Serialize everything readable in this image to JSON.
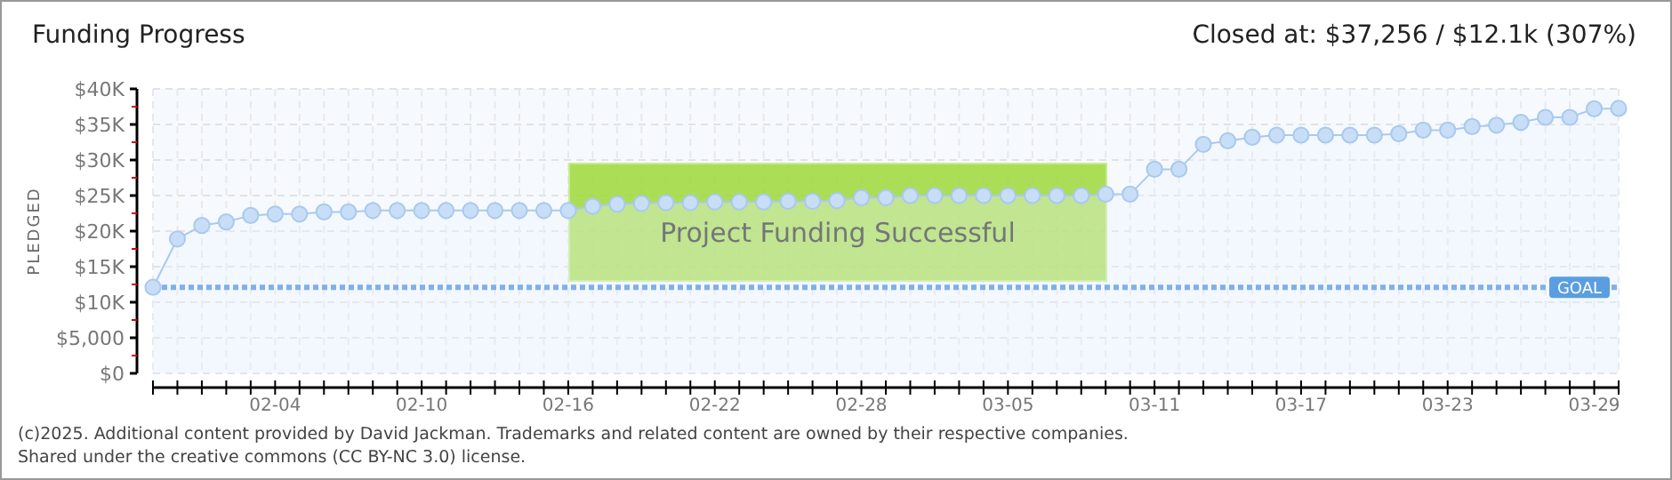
{
  "chart_data": {
    "type": "area",
    "title": "Funding Progress",
    "subtitle": "Closed at: $37,256 / $12.1k (307%)",
    "ylabel": "PLEDGED",
    "categories": [
      null,
      null,
      null,
      null,
      null,
      "02-04",
      null,
      null,
      null,
      null,
      null,
      "02-10",
      null,
      null,
      null,
      null,
      null,
      "02-16",
      null,
      null,
      null,
      null,
      null,
      "02-22",
      null,
      null,
      null,
      null,
      null,
      "02-28",
      null,
      null,
      null,
      null,
      null,
      "03-05",
      null,
      null,
      null,
      null,
      null,
      "03-11",
      null,
      null,
      null,
      null,
      null,
      "03-17",
      null,
      null,
      null,
      null,
      null,
      "03-23",
      null,
      null,
      null,
      null,
      null,
      "03-29",
      null
    ],
    "series": [
      {
        "color": "#a9c9ef",
        "values": [
          12100,
          18900,
          20800,
          21300,
          22200,
          22400,
          22400,
          22700,
          22700,
          22900,
          22900,
          22900,
          22900,
          22900,
          22900,
          22900,
          22900,
          22900,
          23500,
          23800,
          23900,
          24000,
          24000,
          24100,
          24100,
          24100,
          24200,
          24200,
          24300,
          24700,
          24700,
          25000,
          25000,
          25000,
          25000,
          25000,
          25000,
          25000,
          25000,
          25200,
          25200,
          28700,
          28700,
          32200,
          32700,
          33200,
          33500,
          33500,
          33500,
          33500,
          33500,
          33700,
          34200,
          34200,
          34700,
          34900,
          35300,
          36000,
          36000,
          37200,
          37256
        ]
      }
    ],
    "ylim": [
      0,
      40000
    ],
    "yticks": [
      {
        "value": 0,
        "label": "$0"
      },
      {
        "value": 5000,
        "label": "$5,000"
      },
      {
        "value": 10000,
        "label": "$10K"
      },
      {
        "value": 15000,
        "label": "$15K"
      },
      {
        "value": 20000,
        "label": "$20K"
      },
      {
        "value": 25000,
        "label": "$25K"
      },
      {
        "value": 30000,
        "label": "$30K"
      },
      {
        "value": 35000,
        "label": "$35K"
      },
      {
        "value": 40000,
        "label": "$40K"
      }
    ],
    "grid": true,
    "marker": "circle",
    "ref_lines": [
      {
        "axis": "y",
        "value": 12100,
        "label": "GOAL",
        "color": "#7fb0ea",
        "line_style": "dotted"
      }
    ],
    "annotations": [
      "Project Funding Successful",
      "(c)2025. Additional content provided by David Jackman. Trademarks and related content are owned by their respective companies.",
      "Shared under the creative commons (CC BY-NC 3.0) license."
    ]
  }
}
